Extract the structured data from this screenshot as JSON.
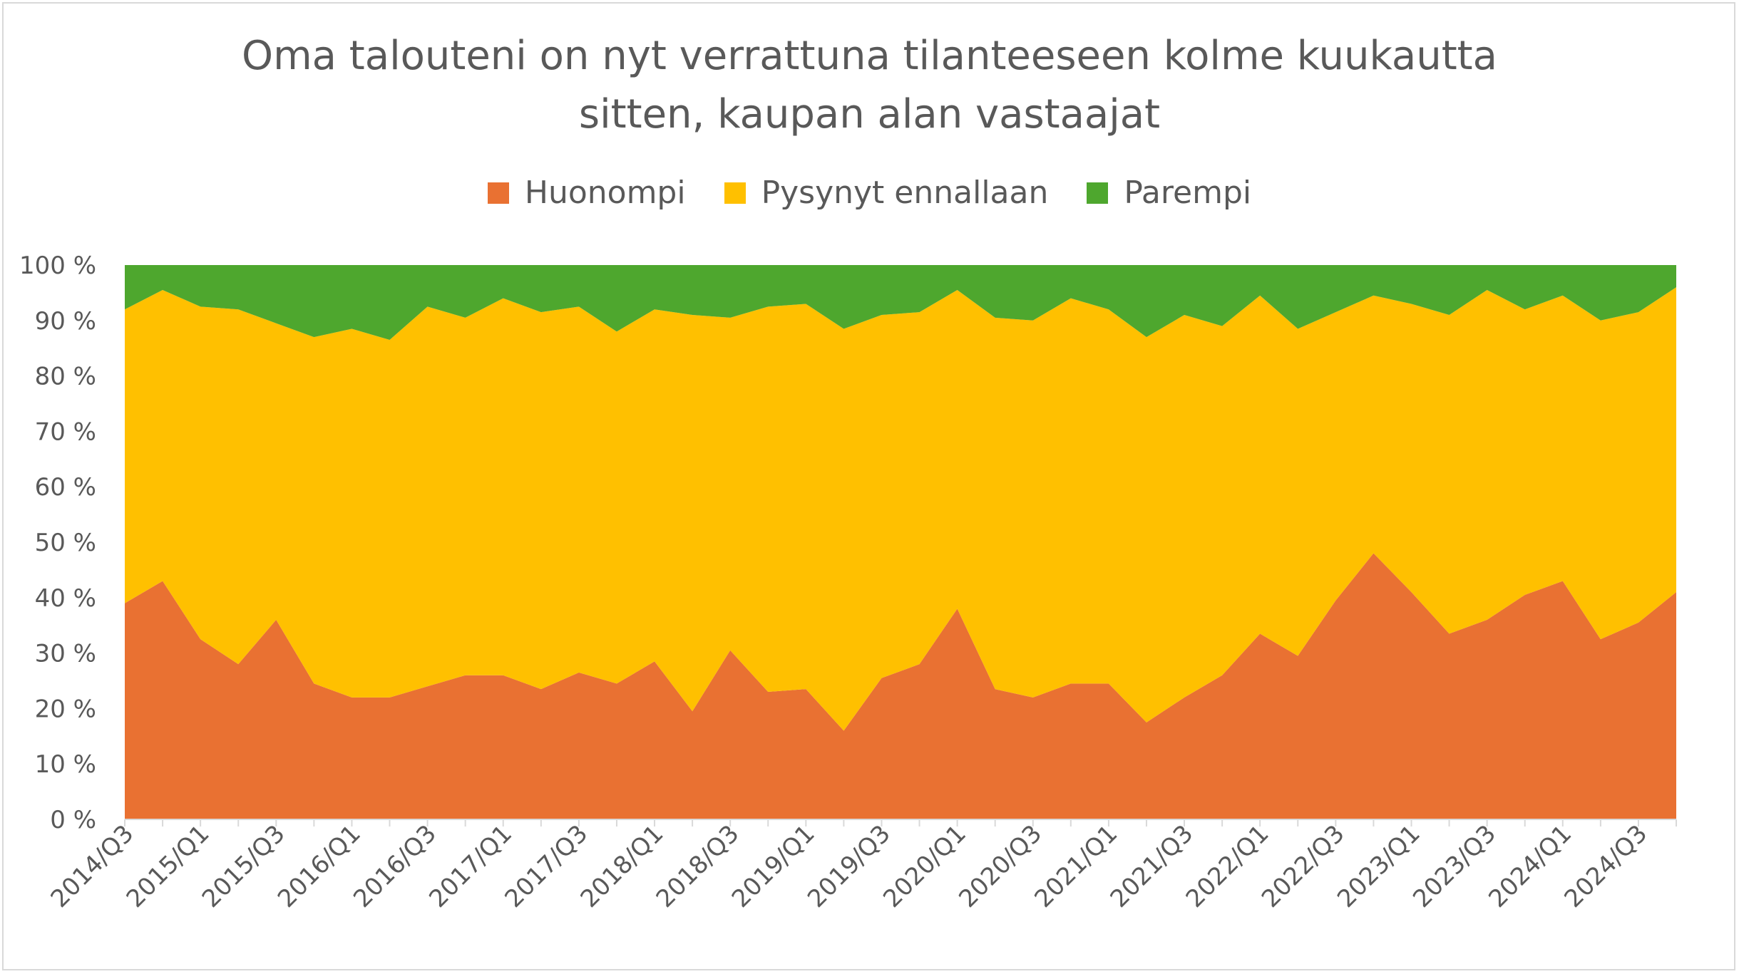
{
  "title_line1": "Oma talouteni on nyt verrattuna tilanteeseen kolme kuukautta",
  "title_line2": "sitten, kaupan alan vastaajat",
  "legend": [
    {
      "label": "Huonompi",
      "color": "#E97132"
    },
    {
      "label": "Pysynyt ennallaan",
      "color": "#FFC000"
    },
    {
      "label": "Parempi",
      "color": "#4EA72E"
    }
  ],
  "y_tick_labels": [
    "0 %",
    "10 %",
    "20 %",
    "30 %",
    "40 %",
    "50 %",
    "60 %",
    "70 %",
    "80 %",
    "90 %",
    "100 %"
  ],
  "x_tick_labels": [
    "2014/Q3",
    "2015/Q1",
    "2015/Q3",
    "2016/Q1",
    "2016/Q3",
    "2017/Q1",
    "2017/Q3",
    "2018/Q1",
    "2018/Q3",
    "2019/Q1",
    "2019/Q3",
    "2020/Q1",
    "2020/Q3",
    "2021/Q1",
    "2021/Q3",
    "2022/Q1",
    "2022/Q3",
    "2023/Q1",
    "2023/Q3",
    "2024/Q1",
    "2024/Q3"
  ],
  "chart_data": {
    "type": "area",
    "stacked": true,
    "percent": true,
    "x": [
      "2014/Q3",
      "2014/Q4",
      "2015/Q1",
      "2015/Q2",
      "2015/Q3",
      "2015/Q4",
      "2016/Q1",
      "2016/Q2",
      "2016/Q3",
      "2016/Q4",
      "2017/Q1",
      "2017/Q2",
      "2017/Q3",
      "2017/Q4",
      "2018/Q1",
      "2018/Q2",
      "2018/Q3",
      "2018/Q4",
      "2019/Q1",
      "2019/Q2",
      "2019/Q3",
      "2019/Q4",
      "2020/Q1",
      "2020/Q2",
      "2020/Q3",
      "2020/Q4",
      "2021/Q1",
      "2021/Q2",
      "2021/Q3",
      "2021/Q4",
      "2022/Q1",
      "2022/Q2",
      "2022/Q3",
      "2022/Q4",
      "2023/Q1",
      "2023/Q2",
      "2023/Q3",
      "2023/Q4",
      "2024/Q1",
      "2024/Q2",
      "2024/Q3",
      "2024/Q4"
    ],
    "series": [
      {
        "name": "Huonompi",
        "values": [
          39,
          43,
          32.5,
          28,
          36,
          24.5,
          22,
          22,
          24,
          26,
          26,
          23.5,
          26.5,
          24.5,
          28.5,
          19.5,
          30.5,
          23,
          23.5,
          16,
          25.5,
          28,
          38,
          23.5,
          22,
          24.5,
          24.5,
          17.5,
          22,
          26,
          33.5,
          29.5,
          39.5,
          48,
          41,
          33.5,
          36,
          40.5,
          43,
          32.5,
          35.5,
          41
        ]
      },
      {
        "name": "Pysynyt ennallaan",
        "values": [
          53,
          52.5,
          60,
          64,
          53.5,
          62.5,
          66.5,
          64.5,
          68.5,
          64.5,
          68,
          68,
          66,
          63.5,
          63.5,
          71.5,
          60,
          69.5,
          69.5,
          72.5,
          65.5,
          63.5,
          57.5,
          67,
          68,
          69.5,
          67.5,
          69.5,
          69,
          63,
          61,
          59,
          52,
          46.5,
          52,
          57.5,
          59.5,
          51.5,
          51.5,
          57.5,
          56,
          55
        ]
      },
      {
        "name": "Parempi",
        "values": [
          8,
          4.5,
          7.5,
          8,
          10.5,
          13,
          11.5,
          13.5,
          7.5,
          9.5,
          6,
          8.5,
          7.5,
          12,
          8,
          9,
          9.5,
          7.5,
          7,
          11.5,
          9,
          8.5,
          4.5,
          9.5,
          10,
          6,
          8,
          13,
          9,
          11,
          5.5,
          11.5,
          8.5,
          5.5,
          7,
          9,
          4.5,
          8,
          5.5,
          10,
          8.5,
          4
        ]
      }
    ],
    "ylim": [
      0,
      100
    ],
    "grid": false,
    "legend_position": "top"
  }
}
